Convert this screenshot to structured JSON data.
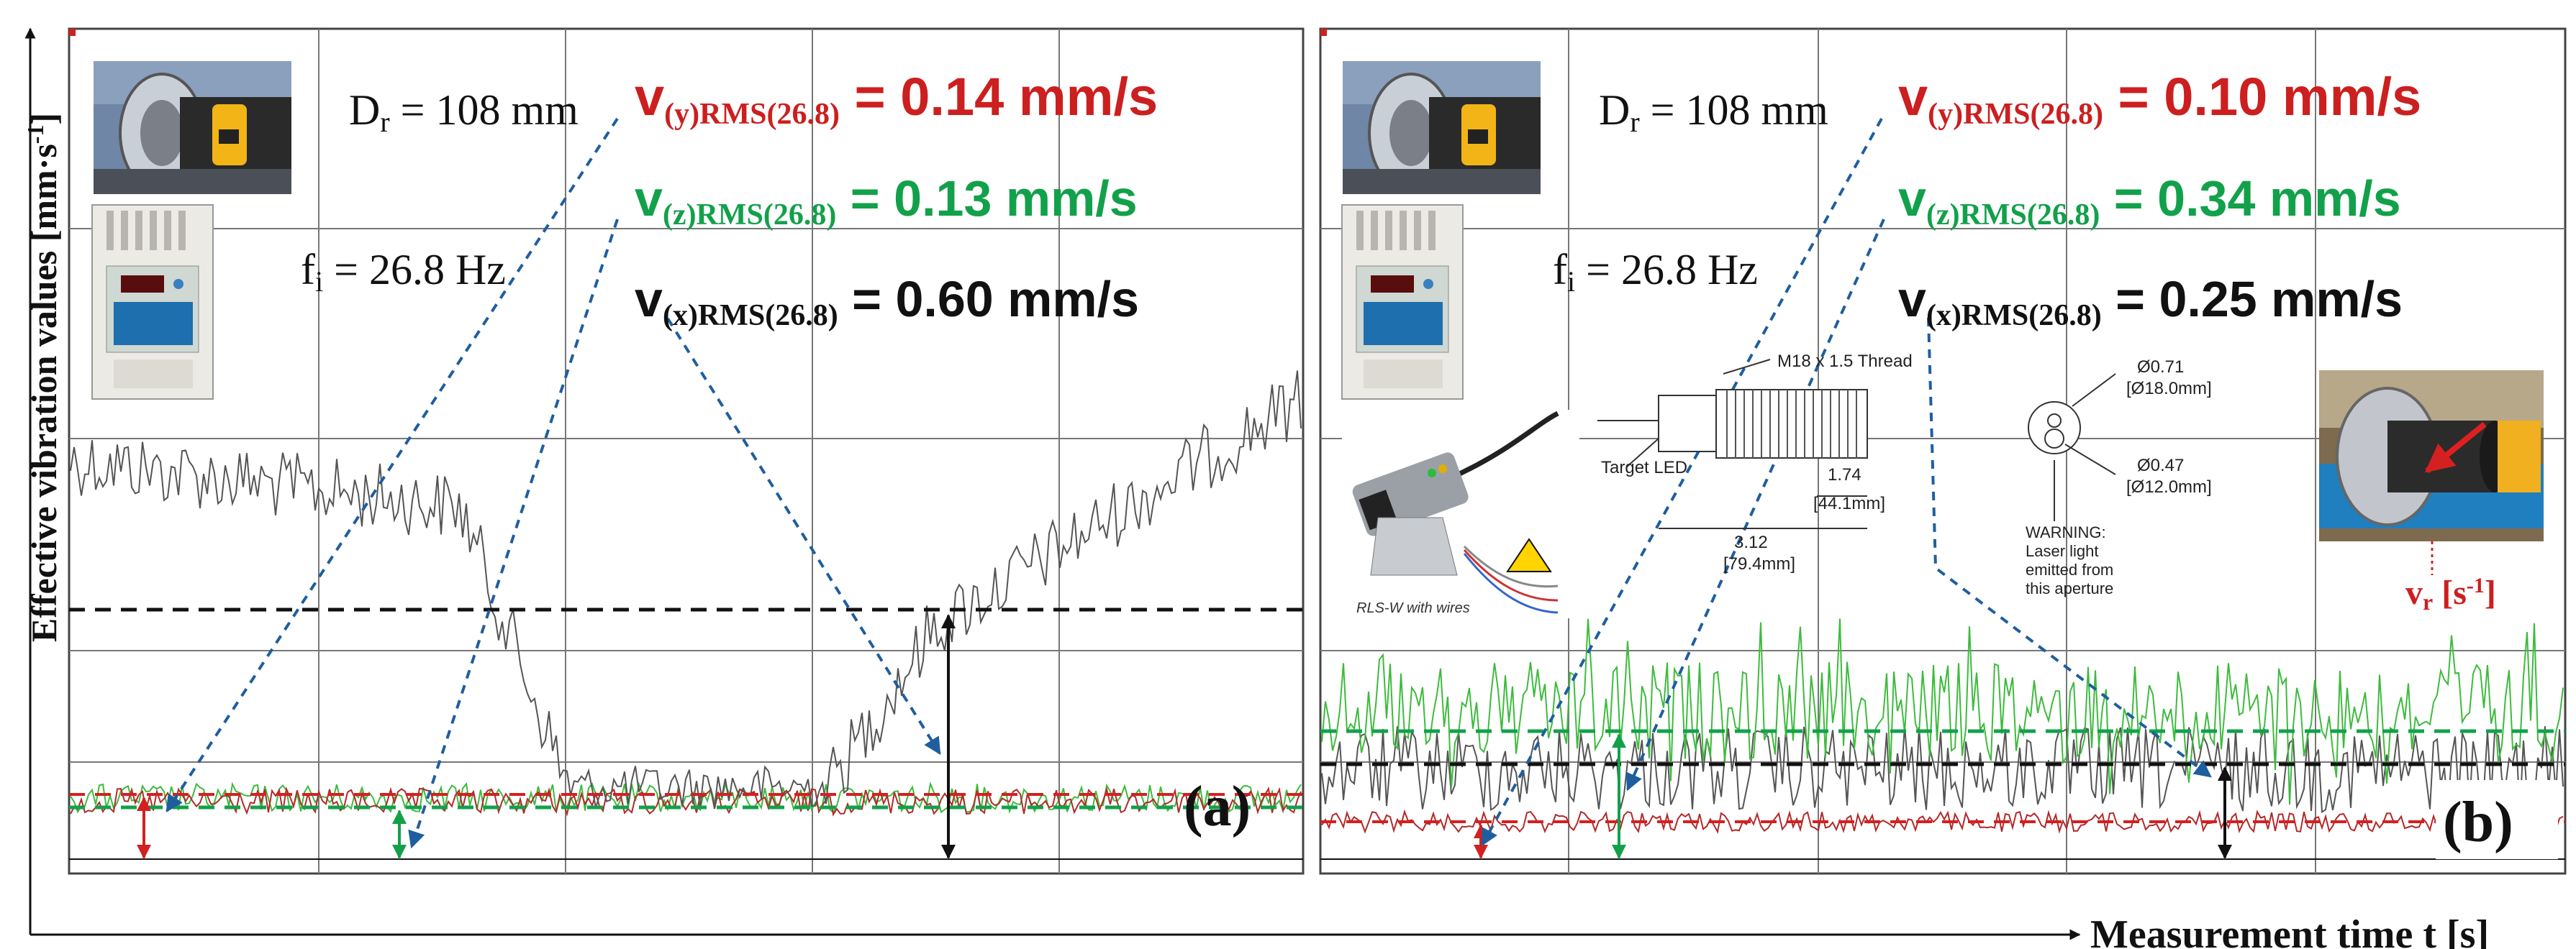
{
  "figure": {
    "y_axis_label": "Effective vibration values [mm·s",
    "y_axis_label_sup": "-1",
    "y_axis_label_end": "]",
    "x_axis_label": "Measurement time t [s]"
  },
  "colors": {
    "y_series": "#cc1f1f",
    "z_series": "#12a14a",
    "x_series": "#111111",
    "arrow_dashed": "#1f5e9e",
    "trace_black": "#555555",
    "trace_green": "#3dbb3d",
    "trace_red": "#b22a2a"
  },
  "panels": [
    {
      "id": "a",
      "panel_label": "(a)",
      "dr_prefix": "D",
      "dr_sub": "r",
      "dr_value": " = 108 mm",
      "fi_prefix": "f",
      "fi_sub": "i",
      "fi_value": " = 26.8 Hz",
      "vy": {
        "v": "v",
        "sub": "(y)RMS(26.8)",
        "value": " = 0.14 mm/s"
      },
      "vz": {
        "v": "v",
        "sub": "(z)RMS(26.8)",
        "value": " = 0.13 mm/s"
      },
      "vx": {
        "v": "v",
        "sub": "(x)RMS(26.8)",
        "value": " = 0.60 mm/s"
      },
      "icons": [
        "roller-photo-icon",
        "frequency-inverter-icon"
      ]
    },
    {
      "id": "b",
      "panel_label": "(b)",
      "dr_prefix": "D",
      "dr_sub": "r",
      "dr_value": " = 108 mm",
      "fi_prefix": "f",
      "fi_sub": "i",
      "fi_value": " = 26.8 Hz",
      "vy": {
        "v": "v",
        "sub": "(y)RMS(26.8)",
        "value": " = 0.10 mm/s"
      },
      "vz": {
        "v": "v",
        "sub": "(z)RMS(26.8)",
        "value": " = 0.34 mm/s"
      },
      "vx": {
        "v": "v",
        "sub": "(x)RMS(26.8)",
        "value": " = 0.25 mm/s"
      },
      "icons": [
        "roller-photo-icon",
        "frequency-inverter-icon",
        "laser-sensor-icon",
        "roller-rotation-photo-icon"
      ],
      "sensor_drawing": {
        "thread": "M18 x 1.5 Thread",
        "target_led": "Target LED",
        "len1": "1.74",
        "len1_mm": "[44.1mm]",
        "len2": "3.12",
        "len2_mm": "[79.4mm]",
        "d1": "Ø0.71",
        "d1_mm": "[Ø18.0mm]",
        "d2": "Ø0.47",
        "d2_mm": "[Ø12.0mm]",
        "warning": [
          "WARNING:",
          "Laser light",
          "emitted from",
          "this aperture"
        ],
        "caption": "RLS-W with wires"
      },
      "vr_label": "v",
      "vr_sub": "r",
      "vr_unit": " [s",
      "vr_unit_sup": "-1",
      "vr_unit_end": "]"
    }
  ],
  "chart_data": [
    {
      "type": "line",
      "panel": "(a)",
      "series": [
        {
          "name": "v(y)RMS(26.8)",
          "rms": 0.14,
          "unit": "mm/s"
        },
        {
          "name": "v(z)RMS(26.8)",
          "rms": 0.13,
          "unit": "mm/s"
        },
        {
          "name": "v(x)RMS(26.8)",
          "rms": 0.6,
          "unit": "mm/s"
        }
      ],
      "xlabel": "Measurement time t [s]",
      "ylabel": "Effective vibration values [mm·s-1]"
    },
    {
      "type": "line",
      "panel": "(b)",
      "series": [
        {
          "name": "v(y)RMS(26.8)",
          "rms": 0.1,
          "unit": "mm/s"
        },
        {
          "name": "v(z)RMS(26.8)",
          "rms": 0.34,
          "unit": "mm/s"
        },
        {
          "name": "v(x)RMS(26.8)",
          "rms": 0.25,
          "unit": "mm/s"
        }
      ],
      "xlabel": "Measurement time t [s]",
      "ylabel": "Effective vibration values [mm·s-1]"
    }
  ]
}
